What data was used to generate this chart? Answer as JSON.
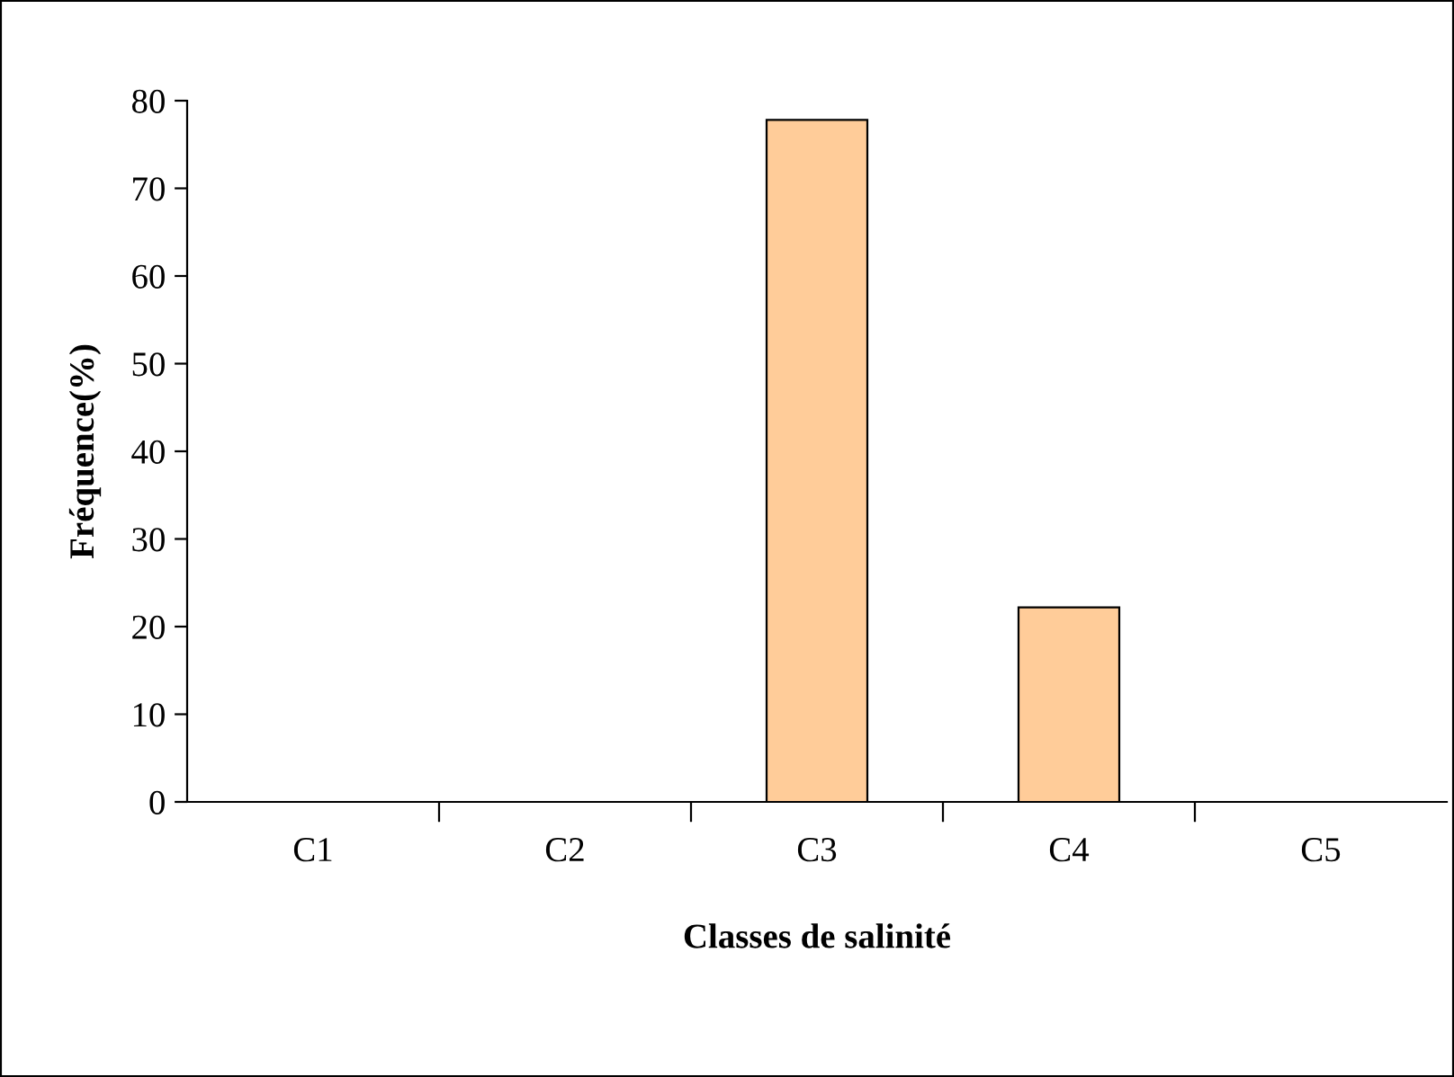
{
  "chart_data": {
    "type": "bar",
    "xlabel": "Classes de salinité",
    "ylabel": "Fréquence(%)",
    "categories": [
      "C1",
      "C2",
      "C3",
      "C4",
      "C5"
    ],
    "values": [
      0,
      0,
      77.8,
      22.2,
      0
    ],
    "color": "#ffcc99",
    "ylim": [
      0,
      80
    ],
    "yticks": [
      0,
      10,
      20,
      30,
      40,
      50,
      60,
      70,
      80
    ],
    "grid": false,
    "legend": false
  }
}
